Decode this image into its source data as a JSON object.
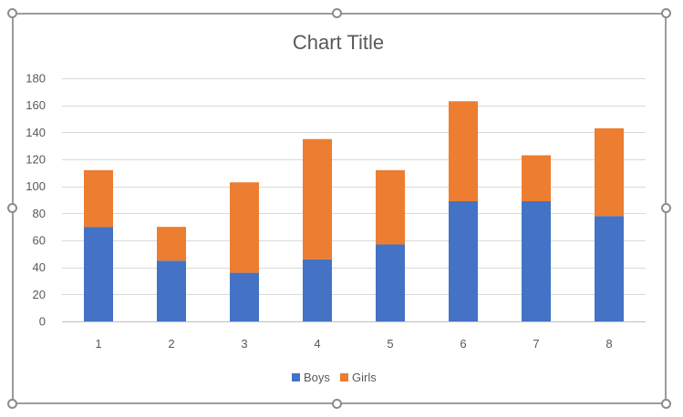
{
  "chart_data": {
    "type": "bar",
    "stacked": true,
    "title": "Chart Title",
    "xlabel": "",
    "ylabel": "",
    "categories": [
      "1",
      "2",
      "3",
      "4",
      "5",
      "6",
      "7",
      "8"
    ],
    "series": [
      {
        "name": "Boys",
        "color": "#4472c4",
        "values": [
          70,
          45,
          36,
          46,
          57,
          89,
          89,
          78
        ]
      },
      {
        "name": "Girls",
        "color": "#ed7d31",
        "values": [
          42,
          25,
          67,
          89,
          55,
          74,
          34,
          65
        ]
      }
    ],
    "ylim": [
      0,
      180
    ],
    "yticks": [
      0,
      20,
      40,
      60,
      80,
      100,
      120,
      140,
      160,
      180
    ],
    "grid": true,
    "legend_position": "bottom"
  }
}
